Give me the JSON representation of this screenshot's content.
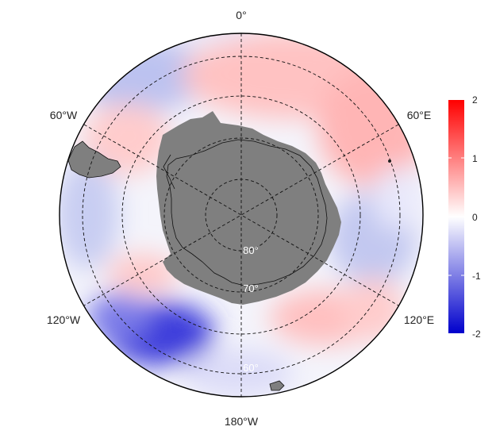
{
  "map": {
    "projection": "south-polar-stereographic",
    "longitude_labels": [
      "0°",
      "60°E",
      "120°E",
      "180°W",
      "120°W",
      "60°W"
    ],
    "latitude_labels": [
      "80°",
      "70°",
      "60°"
    ],
    "graticule_style": "dashed"
  },
  "colorbar": {
    "ticks": [
      "2",
      "1",
      "0",
      "-1",
      "-2"
    ],
    "range": [
      -2,
      2
    ],
    "colors": {
      "high": "#ff0000",
      "mid": "#ffffff",
      "low": "#0000cc"
    }
  },
  "colors": {
    "land": "#7f7f7f",
    "ocean_neutral": "#f4f4fb",
    "warm": "#ffb3b3",
    "cool": "#b8bef0",
    "strong_cool": "#3f3fdc"
  }
}
